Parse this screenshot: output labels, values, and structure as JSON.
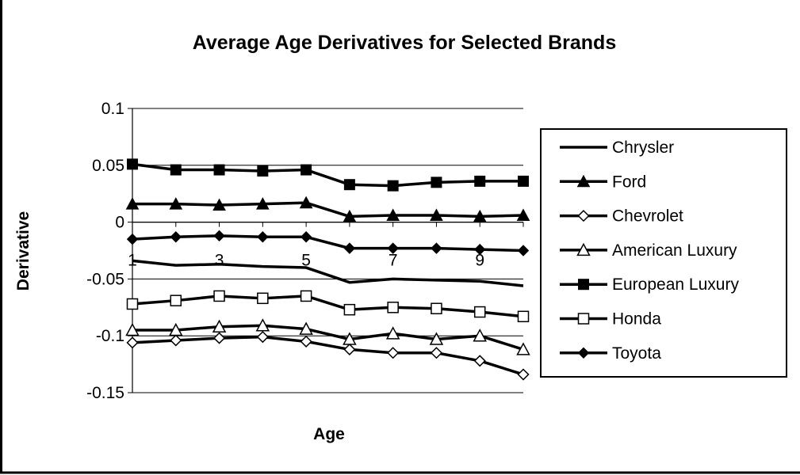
{
  "chart_data": {
    "type": "line",
    "title": "Average Age Derivatives for Selected Brands",
    "xlabel": "Age",
    "ylabel": "Derivative",
    "x": [
      1,
      2,
      3,
      4,
      5,
      6,
      7,
      8,
      9,
      10
    ],
    "x_tick_labels": [
      "1",
      "3",
      "5",
      "7",
      "9"
    ],
    "x_tick_values": [
      1,
      3,
      5,
      7,
      9
    ],
    "ylim": [
      -0.15,
      0.1
    ],
    "y_ticks": [
      0.1,
      0.05,
      0,
      -0.05,
      -0.1,
      -0.15
    ],
    "y_tick_labels": [
      "0.1",
      "0.05",
      "0",
      "-0.05",
      "-0.1",
      "-0.15"
    ],
    "grid": "horizontal",
    "legend_position": "right",
    "series": [
      {
        "name": "Chrysler",
        "marker": "none",
        "values": [
          -0.034,
          -0.038,
          -0.037,
          -0.039,
          -0.04,
          -0.053,
          -0.05,
          -0.051,
          -0.052,
          -0.056
        ]
      },
      {
        "name": "Ford",
        "marker": "triangle-filled",
        "values": [
          0.016,
          0.016,
          0.015,
          0.016,
          0.017,
          0.005,
          0.006,
          0.006,
          0.005,
          0.006
        ]
      },
      {
        "name": "Chevrolet",
        "marker": "diamond-open",
        "values": [
          -0.106,
          -0.104,
          -0.102,
          -0.101,
          -0.105,
          -0.112,
          -0.115,
          -0.115,
          -0.122,
          -0.134
        ]
      },
      {
        "name": "American Luxury",
        "marker": "triangle-open",
        "values": [
          -0.095,
          -0.095,
          -0.092,
          -0.091,
          -0.094,
          -0.103,
          -0.098,
          -0.103,
          -0.1,
          -0.112
        ]
      },
      {
        "name": "European Luxury",
        "marker": "square-filled",
        "values": [
          0.051,
          0.046,
          0.046,
          0.045,
          0.046,
          0.033,
          0.032,
          0.035,
          0.036,
          0.036
        ]
      },
      {
        "name": "Honda",
        "marker": "square-open",
        "values": [
          -0.072,
          -0.069,
          -0.065,
          -0.067,
          -0.065,
          -0.077,
          -0.075,
          -0.076,
          -0.079,
          -0.083
        ]
      },
      {
        "name": "Toyota",
        "marker": "diamond-filled",
        "values": [
          -0.015,
          -0.013,
          -0.012,
          -0.013,
          -0.013,
          -0.023,
          -0.023,
          -0.023,
          -0.024,
          -0.025
        ]
      }
    ]
  }
}
